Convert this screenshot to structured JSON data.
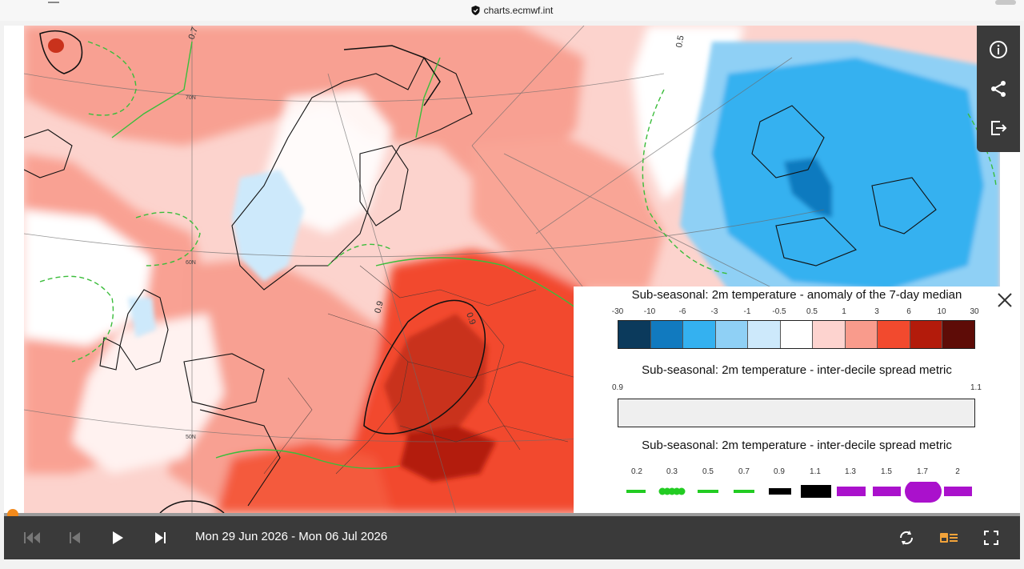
{
  "browser": {
    "url": "charts.ecmwf.int"
  },
  "map": {
    "lat_labels": [
      "70N",
      "60N",
      "50N"
    ],
    "contour_labels": [
      "0.7",
      "0.5",
      "0.9",
      "0.9",
      "0.7"
    ]
  },
  "toolbar": {
    "info_icon": "info-icon",
    "share_icon": "share-icon",
    "export_icon": "export-icon"
  },
  "legend": {
    "anomaly_title": "Sub-seasonal: 2m temperature - anomaly of the 7-day median",
    "anomaly_ticks": [
      "-30",
      "-10",
      "-6",
      "-3",
      "-1",
      "-0.5",
      "0.5",
      "1",
      "3",
      "6",
      "10",
      "30"
    ],
    "anomaly_colors": [
      "#0b3a5c",
      "#117abf",
      "#34b1f0",
      "#8fd0f5",
      "#cde9fb",
      "#ffffff",
      "#fdd3cf",
      "#f99b8c",
      "#f24a2e",
      "#b31b0b",
      "#5e0c07"
    ],
    "spread_title": "Sub-seasonal: 2m temperature - inter-decile spread metric",
    "spread_min": "0.9",
    "spread_max": "1.1",
    "spread_color": "#efefef",
    "lines_title": "Sub-seasonal: 2m temperature - inter-decile spread metric",
    "line_labels": [
      "0.2",
      "0.3",
      "0.5",
      "0.7",
      "0.9",
      "1.1",
      "1.3",
      "1.5",
      "1.7",
      "2"
    ]
  },
  "player": {
    "date_range": "Mon 29 Jun 2026 - Mon 06 Jul 2026",
    "progress": 0
  }
}
